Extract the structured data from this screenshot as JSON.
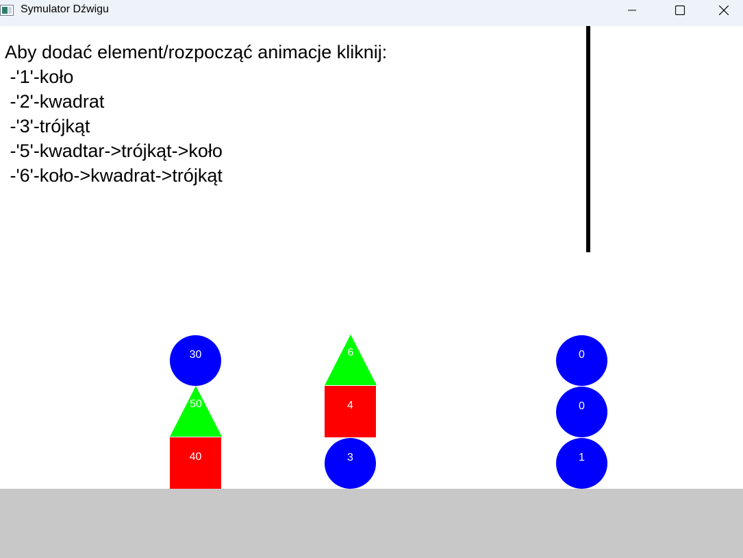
{
  "window": {
    "title": "Symulator Dźwigu"
  },
  "instructions": [
    "Aby dodać element/rozpocząć animacje kliknij:",
    " -'1'-koło",
    " -'2'-kwadrat",
    " -'3'-trójkąt",
    " -'5'-kwadtar->trójkąt->koło",
    " -'6'-koło->kwadrat->trójkąt"
  ],
  "colors": {
    "circle": "#0000ff",
    "square": "#ff0000",
    "triangle": "#00ff00",
    "ground": "#c8c8c8",
    "crane_line": "#000000"
  },
  "stacks": [
    {
      "items": [
        {
          "shape": "square",
          "label": "40"
        },
        {
          "shape": "triangle",
          "label": "50"
        },
        {
          "shape": "circle",
          "label": "30"
        }
      ]
    },
    {
      "items": [
        {
          "shape": "circle",
          "label": "3"
        },
        {
          "shape": "square",
          "label": "4"
        },
        {
          "shape": "triangle",
          "label": "6"
        }
      ]
    },
    {
      "items": [
        {
          "shape": "circle",
          "label": "1"
        },
        {
          "shape": "circle",
          "label": "0"
        },
        {
          "shape": "circle",
          "label": "0"
        }
      ]
    }
  ]
}
